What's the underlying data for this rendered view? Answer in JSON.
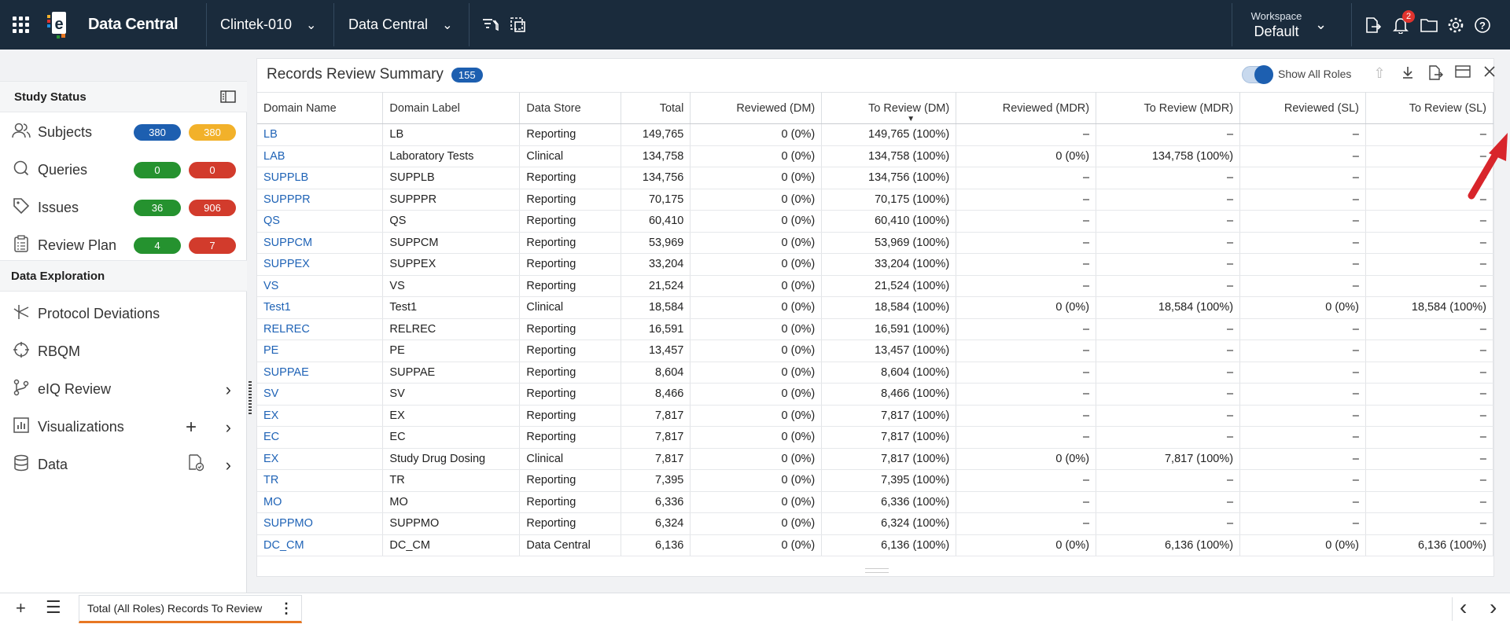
{
  "topbar": {
    "app_title": "Data Central",
    "study_selector": "Clintek-010",
    "module_selector": "Data Central",
    "workspace_label": "Workspace",
    "workspace_value": "Default",
    "notification_count": "2"
  },
  "sidebar": {
    "study_status_heading": "Study Status",
    "status_items": [
      {
        "label": "Subjects",
        "left_count": "380",
        "right_count": "380",
        "left_color": "blue",
        "right_color": "yellow"
      },
      {
        "label": "Queries",
        "left_count": "0",
        "right_count": "0",
        "left_color": "green",
        "right_color": "red"
      },
      {
        "label": "Issues",
        "left_count": "36",
        "right_count": "906",
        "left_color": "green",
        "right_color": "red"
      },
      {
        "label": "Review Plan",
        "left_count": "4",
        "right_count": "7",
        "left_color": "green",
        "right_color": "red"
      }
    ],
    "exploration_heading": "Data Exploration",
    "exploration_items": [
      {
        "label": "Protocol Deviations"
      },
      {
        "label": "RBQM"
      },
      {
        "label": "eIQ Review"
      },
      {
        "label": "Visualizations"
      },
      {
        "label": "Data"
      }
    ]
  },
  "panel": {
    "title": "Records Review Summary",
    "count": "155",
    "show_all_roles_label": "Show All Roles",
    "show_all_roles_on": true,
    "columns": [
      "Domain Name",
      "Domain Label",
      "Data Store",
      "Total",
      "Reviewed (DM)",
      "To Review (DM)",
      "Reviewed (MDR)",
      "To Review (MDR)",
      "Reviewed (SL)",
      "To Review (SL)"
    ],
    "sorted_column": "To Review (DM)",
    "rows": [
      [
        "LB",
        "LB",
        "Reporting",
        "149,765",
        "0 (0%)",
        "149,765 (100%)",
        "–",
        "–",
        "–",
        "–"
      ],
      [
        "LAB",
        "Laboratory Tests",
        "Clinical",
        "134,758",
        "0 (0%)",
        "134,758 (100%)",
        "0 (0%)",
        "134,758 (100%)",
        "–",
        "–"
      ],
      [
        "SUPPLB",
        "SUPPLB",
        "Reporting",
        "134,756",
        "0 (0%)",
        "134,756 (100%)",
        "–",
        "–",
        "–",
        "–"
      ],
      [
        "SUPPPR",
        "SUPPPR",
        "Reporting",
        "70,175",
        "0 (0%)",
        "70,175 (100%)",
        "–",
        "–",
        "–",
        "–"
      ],
      [
        "QS",
        "QS",
        "Reporting",
        "60,410",
        "0 (0%)",
        "60,410 (100%)",
        "–",
        "–",
        "–",
        "–"
      ],
      [
        "SUPPCM",
        "SUPPCM",
        "Reporting",
        "53,969",
        "0 (0%)",
        "53,969 (100%)",
        "–",
        "–",
        "–",
        "–"
      ],
      [
        "SUPPEX",
        "SUPPEX",
        "Reporting",
        "33,204",
        "0 (0%)",
        "33,204 (100%)",
        "–",
        "–",
        "–",
        "–"
      ],
      [
        "VS",
        "VS",
        "Reporting",
        "21,524",
        "0 (0%)",
        "21,524 (100%)",
        "–",
        "–",
        "–",
        "–"
      ],
      [
        "Test1",
        "Test1",
        "Clinical",
        "18,584",
        "0 (0%)",
        "18,584 (100%)",
        "0 (0%)",
        "18,584 (100%)",
        "0 (0%)",
        "18,584 (100%)"
      ],
      [
        "RELREC",
        "RELREC",
        "Reporting",
        "16,591",
        "0 (0%)",
        "16,591 (100%)",
        "–",
        "–",
        "–",
        "–"
      ],
      [
        "PE",
        "PE",
        "Reporting",
        "13,457",
        "0 (0%)",
        "13,457 (100%)",
        "–",
        "–",
        "–",
        "–"
      ],
      [
        "SUPPAE",
        "SUPPAE",
        "Reporting",
        "8,604",
        "0 (0%)",
        "8,604 (100%)",
        "–",
        "–",
        "–",
        "–"
      ],
      [
        "SV",
        "SV",
        "Reporting",
        "8,466",
        "0 (0%)",
        "8,466 (100%)",
        "–",
        "–",
        "–",
        "–"
      ],
      [
        "EX",
        "EX",
        "Reporting",
        "7,817",
        "0 (0%)",
        "7,817 (100%)",
        "–",
        "–",
        "–",
        "–"
      ],
      [
        "EC",
        "EC",
        "Reporting",
        "7,817",
        "0 (0%)",
        "7,817 (100%)",
        "–",
        "–",
        "–",
        "–"
      ],
      [
        "EX",
        "Study Drug Dosing",
        "Clinical",
        "7,817",
        "0 (0%)",
        "7,817 (100%)",
        "0 (0%)",
        "7,817 (100%)",
        "–",
        "–"
      ],
      [
        "TR",
        "TR",
        "Reporting",
        "7,395",
        "0 (0%)",
        "7,395 (100%)",
        "–",
        "–",
        "–",
        "–"
      ],
      [
        "MO",
        "MO",
        "Reporting",
        "6,336",
        "0 (0%)",
        "6,336 (100%)",
        "–",
        "–",
        "–",
        "–"
      ],
      [
        "SUPPMO",
        "SUPPMO",
        "Reporting",
        "6,324",
        "0 (0%)",
        "6,324 (100%)",
        "–",
        "–",
        "–",
        "–"
      ],
      [
        "DC_CM",
        "DC_CM",
        "Data Central",
        "6,136",
        "0 (0%)",
        "6,136 (100%)",
        "0 (0%)",
        "6,136 (100%)",
        "0 (0%)",
        "6,136 (100%)"
      ]
    ]
  },
  "bottom": {
    "active_tab_label": "Total (All Roles) Records To Review"
  },
  "colors": {
    "topbar_bg": "#1a2b3c",
    "accent_blue": "#1d5fb0",
    "link_blue": "#1f63b6",
    "tab_underline": "#e87722",
    "annotation_arrow": "#d8252b"
  }
}
